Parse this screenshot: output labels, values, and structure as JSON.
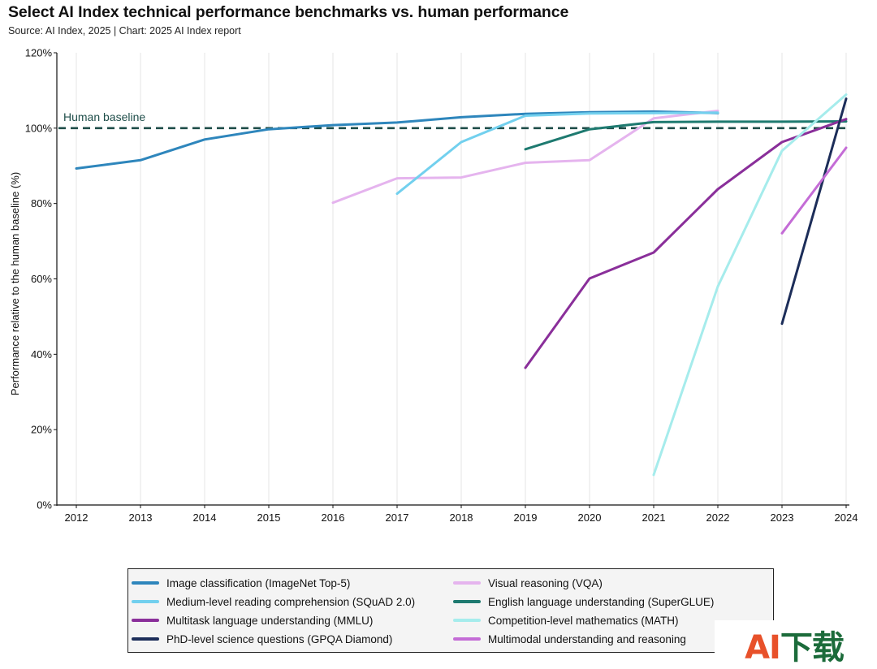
{
  "header": {
    "title": "Select AI Index technical performance benchmarks vs. human performance",
    "subtitle": "Source: AI Index, 2025 | Chart: 2025 AI Index report"
  },
  "watermark": {
    "text_a": "AI",
    "text_rest": "下载"
  },
  "chart_data": {
    "type": "line",
    "ylabel": "Performance relative to the human baseline (%)",
    "xlabel": "",
    "xlim": [
      2012,
      2024
    ],
    "ylim": [
      0,
      120
    ],
    "x_ticks": [
      "2012",
      "2013",
      "2014",
      "2015",
      "2016",
      "2017",
      "2018",
      "2019",
      "2020",
      "2021",
      "2022",
      "2023",
      "2024"
    ],
    "y_ticks": [
      "0%",
      "20%",
      "40%",
      "60%",
      "80%",
      "100%",
      "120%"
    ],
    "grid": "vertical",
    "reference_line": {
      "value": 100,
      "label": "Human baseline",
      "color": "#1f4e4a",
      "style": "dashed"
    },
    "legend_position": "bottom",
    "series": [
      {
        "name": "Image classification (ImageNet Top-5)",
        "color": "#2e86bc",
        "x": [
          2012,
          2013,
          2014,
          2015,
          2016,
          2017,
          2018,
          2019,
          2020,
          2021,
          2022
        ],
        "y": [
          89.3,
          91.5,
          97.0,
          99.7,
          100.8,
          101.5,
          102.9,
          103.8,
          104.2,
          104.4,
          104.0
        ]
      },
      {
        "name": "Visual reasoning (VQA)",
        "color": "#e5b4ee",
        "x": [
          2016,
          2017,
          2018,
          2019,
          2020,
          2021,
          2022
        ],
        "y": [
          80.2,
          86.7,
          86.9,
          90.8,
          91.5,
          102.6,
          104.6
        ]
      },
      {
        "name": "Medium-level reading comprehension (SQuAD 2.0)",
        "color": "#72d0ee",
        "x": [
          2017,
          2018,
          2019,
          2020,
          2021,
          2022
        ],
        "y": [
          82.6,
          96.3,
          103.3,
          103.9,
          104.0,
          104.1
        ]
      },
      {
        "name": "English language understanding (SuperGLUE)",
        "color": "#1e7a70",
        "x": [
          2019,
          2020,
          2021,
          2022,
          2023,
          2024
        ],
        "y": [
          94.4,
          99.7,
          101.6,
          101.7,
          101.7,
          101.8
        ]
      },
      {
        "name": "Multitask language understanding (MMLU)",
        "color": "#8a2f9a",
        "x": [
          2019,
          2020,
          2021,
          2022,
          2023,
          2024
        ],
        "y": [
          36.4,
          60.1,
          67.0,
          83.8,
          96.3,
          102.4
        ]
      },
      {
        "name": "Competition-level mathematics (MATH)",
        "color": "#a6ecec",
        "x": [
          2021,
          2022,
          2023,
          2024
        ],
        "y": [
          8.0,
          58.0,
          94.0,
          108.9
        ]
      },
      {
        "name": "PhD-level science questions (GPQA Diamond)",
        "color": "#1c2d59",
        "x": [
          2023,
          2024
        ],
        "y": [
          48.1,
          107.8
        ]
      },
      {
        "name": "Multimodal understanding and reasoning (MMMU)",
        "color": "#c46cd6",
        "x": [
          2023,
          2024
        ],
        "y": [
          72.1,
          94.8
        ]
      }
    ]
  },
  "legend": {
    "items": [
      {
        "label": "Image classification (ImageNet Top-5)",
        "color": "#2e86bc"
      },
      {
        "label": "Visual reasoning (VQA)",
        "color": "#e5b4ee"
      },
      {
        "label": "Medium-level reading comprehension (SQuAD 2.0)",
        "color": "#72d0ee"
      },
      {
        "label": "English language understanding (SuperGLUE)",
        "color": "#1e7a70"
      },
      {
        "label": "Multitask language understanding (MMLU)",
        "color": "#8a2f9a"
      },
      {
        "label": "Competition-level mathematics (MATH)",
        "color": "#a6ecec"
      },
      {
        "label": "PhD-level science questions (GPQA Diamond)",
        "color": "#1c2d59"
      },
      {
        "label": "Multimodal understanding and reasoning",
        "color": "#c46cd6"
      }
    ]
  }
}
